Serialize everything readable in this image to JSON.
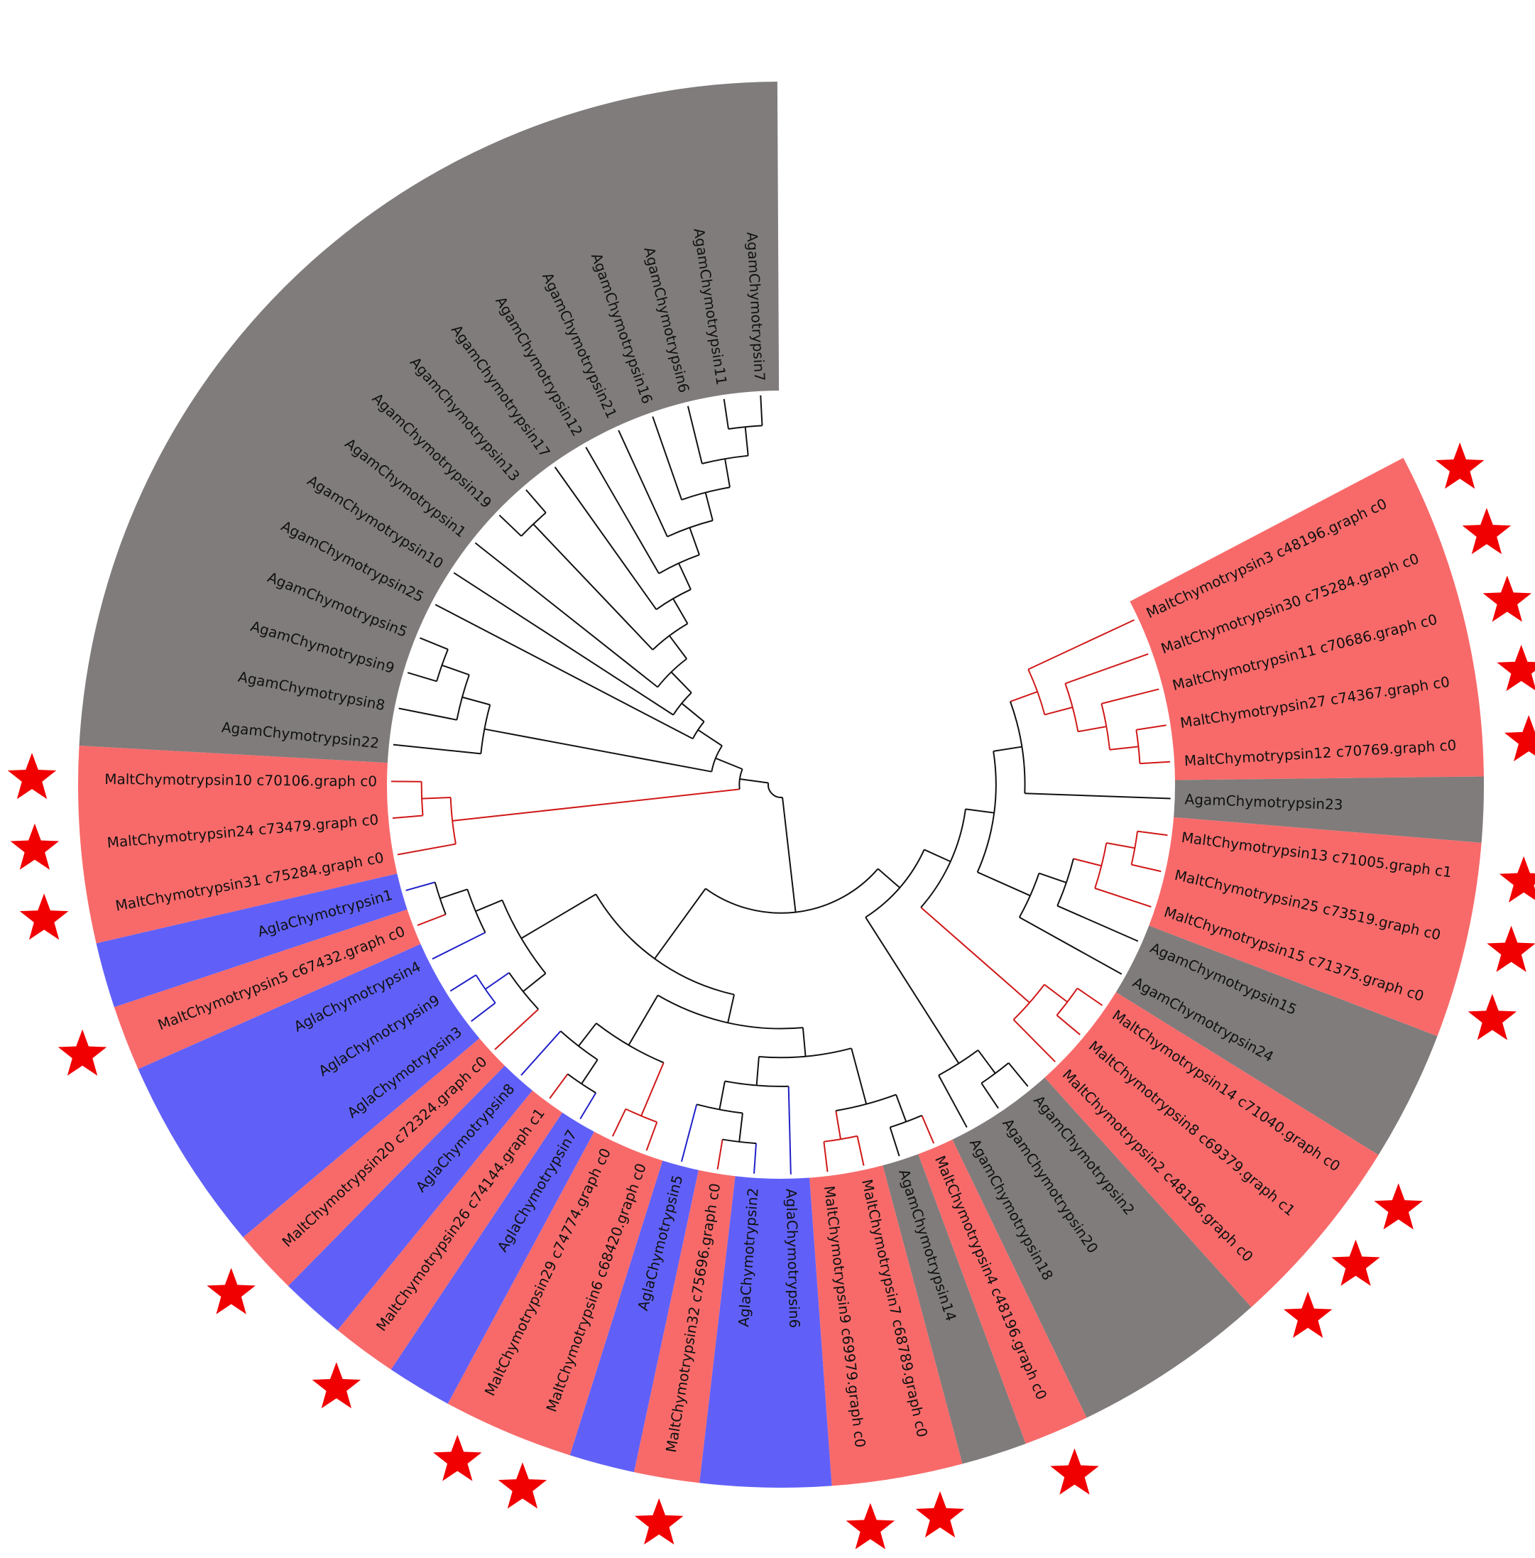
{
  "colors": {
    "malt_band": "#f86a6a",
    "agla_band": "#6060f8",
    "agam_band": "#7f7c7b",
    "malt_branch": "#d01818",
    "agla_branch": "#2020c8",
    "agam_branch": "#111111",
    "star": "#f00000",
    "gap": "#ffffff"
  },
  "star_marker": "red-star-icon",
  "leaves": [
    {
      "label": "MaltChymotrypsin3 c48196.graph c0",
      "group": "Malt",
      "starred": true
    },
    {
      "label": "MaltChymotrypsin30 c75284.graph c0",
      "group": "Malt",
      "starred": true
    },
    {
      "label": "MaltChymotrypsin11 c70686.graph c0",
      "group": "Malt",
      "starred": true
    },
    {
      "label": "MaltChymotrypsin27 c74367.graph c0",
      "group": "Malt",
      "starred": true
    },
    {
      "label": "MaltChymotrypsin12 c70769.graph c0",
      "group": "Malt",
      "starred": true
    },
    {
      "label": "AgamChymotrypsin23",
      "group": "Agam",
      "starred": false
    },
    {
      "label": "MaltChymotrypsin13 c71005.graph c1",
      "group": "Malt",
      "starred": true
    },
    {
      "label": "MaltChymotrypsin25 c73519.graph c0",
      "group": "Malt",
      "starred": true
    },
    {
      "label": "MaltChymotrypsin15 c71375.graph c0",
      "group": "Malt",
      "starred": true
    },
    {
      "label": "AgamChymotrypsin15",
      "group": "Agam",
      "starred": false
    },
    {
      "label": "AgamChymotrypsin24",
      "group": "Agam",
      "starred": false
    },
    {
      "label": "MaltChymotrypsin14 c71040.graph c0",
      "group": "Malt",
      "starred": true
    },
    {
      "label": "MaltChymotrypsin8 c69379.graph c1",
      "group": "Malt",
      "starred": true
    },
    {
      "label": "MaltChymotrypsin2 c48196.graph c0",
      "group": "Malt",
      "starred": true
    },
    {
      "label": "AgamChymotrypsin2",
      "group": "Agam",
      "starred": false
    },
    {
      "label": "AgamChymotrypsin20",
      "group": "Agam",
      "starred": false
    },
    {
      "label": "AgamChymotrypsin18",
      "group": "Agam",
      "starred": false
    },
    {
      "label": "MaltChymotrypsin4 c48196.graph c0",
      "group": "Malt",
      "starred": true
    },
    {
      "label": "AgamChymotrypsin14",
      "group": "Agam",
      "starred": false
    },
    {
      "label": "MaltChymotrypsin7 c68789.graph c0",
      "group": "Malt",
      "starred": true
    },
    {
      "label": "MaltChymotrypsin9 c69979.graph c0",
      "group": "Malt",
      "starred": true
    },
    {
      "label": "AglaChymotrypsin6",
      "group": "Agla",
      "starred": false
    },
    {
      "label": "AglaChymotrypsin2",
      "group": "Agla",
      "starred": false
    },
    {
      "label": "MaltChymotrypsin32 c75696.graph c0",
      "group": "Malt",
      "starred": true
    },
    {
      "label": "AglaChymotrypsin5",
      "group": "Agla",
      "starred": false
    },
    {
      "label": "MaltChymotrypsin6 c68420.graph c0",
      "group": "Malt",
      "starred": true
    },
    {
      "label": "MaltChymotrypsin29 c74774.graph c0",
      "group": "Malt",
      "starred": true
    },
    {
      "label": "AglaChymotrypsin7",
      "group": "Agla",
      "starred": false
    },
    {
      "label": "MaltChymotrypsin26 c74144.graph c1",
      "group": "Malt",
      "starred": true
    },
    {
      "label": "AglaChymotrypsin8",
      "group": "Agla",
      "starred": false
    },
    {
      "label": "MaltChymotrypsin20 c72324.graph c0",
      "group": "Malt",
      "starred": true
    },
    {
      "label": "AglaChymotrypsin3",
      "group": "Agla",
      "starred": false
    },
    {
      "label": "AglaChymotrypsin9",
      "group": "Agla",
      "starred": false
    },
    {
      "label": "AglaChymotrypsin4",
      "group": "Agla",
      "starred": false
    },
    {
      "label": "MaltChymotrypsin5 c67432.graph c0",
      "group": "Malt",
      "starred": true
    },
    {
      "label": "AglaChymotrypsin1",
      "group": "Agla",
      "starred": false
    },
    {
      "label": "MaltChymotrypsin31 c75284.graph c0",
      "group": "Malt",
      "starred": true
    },
    {
      "label": "MaltChymotrypsin24 c73479.graph c0",
      "group": "Malt",
      "starred": true
    },
    {
      "label": "MaltChymotrypsin10 c70106.graph c0",
      "group": "Malt",
      "starred": true
    },
    {
      "label": "AgamChymotrypsin22",
      "group": "Agam",
      "starred": false
    },
    {
      "label": "AgamChymotrypsin8",
      "group": "Agam",
      "starred": false
    },
    {
      "label": "AgamChymotrypsin9",
      "group": "Agam",
      "starred": false
    },
    {
      "label": "AgamChymotrypsin5",
      "group": "Agam",
      "starred": false
    },
    {
      "label": "AgamChymotrypsin25",
      "group": "Agam",
      "starred": false
    },
    {
      "label": "AgamChymotrypsin10",
      "group": "Agam",
      "starred": false
    },
    {
      "label": "AgamChymotrypsin1",
      "group": "Agam",
      "starred": false
    },
    {
      "label": "AgamChymotrypsin19",
      "group": "Agam",
      "starred": false
    },
    {
      "label": "AgamChymotrypsin13",
      "group": "Agam",
      "starred": false
    },
    {
      "label": "AgamChymotrypsin17",
      "group": "Agam",
      "starred": false
    },
    {
      "label": "AgamChymotrypsin12",
      "group": "Agam",
      "starred": false
    },
    {
      "label": "AgamChymotrypsin21",
      "group": "Agam",
      "starred": false
    },
    {
      "label": "AgamChymotrypsin16",
      "group": "Agam",
      "starred": false
    },
    {
      "label": "AgamChymotrypsin6",
      "group": "Agam",
      "starred": false
    },
    {
      "label": "AgamChymotrypsin11",
      "group": "Agam",
      "starred": false
    },
    {
      "label": "AgamChymotrypsin7",
      "group": "Agam",
      "starred": false
    }
  ]
}
